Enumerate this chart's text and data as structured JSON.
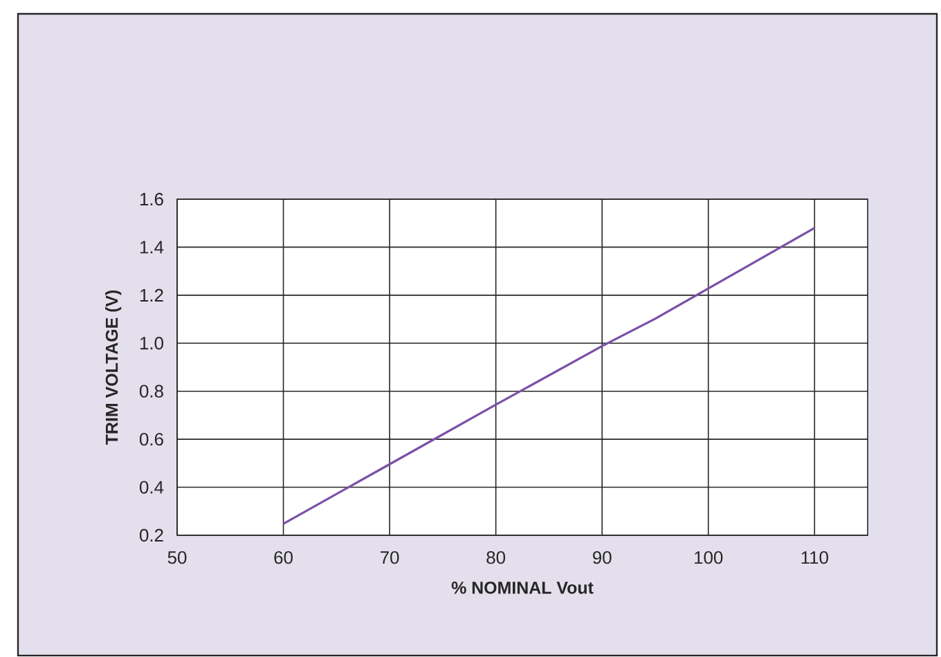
{
  "chart_data": {
    "type": "line",
    "xlabel": "% NOMINAL Vout",
    "ylabel": "TRIM VOLTAGE (V)",
    "x": [
      60,
      70,
      80,
      90,
      95,
      100,
      110
    ],
    "series": [
      {
        "color": "#7b4fa8",
        "values": [
          0.248,
          0.496,
          0.744,
          0.988,
          1.102,
          1.228,
          1.48
        ]
      }
    ],
    "xlim": [
      50,
      115
    ],
    "xticks": [
      50,
      60,
      70,
      80,
      90,
      100,
      110
    ],
    "ylim": [
      0.2,
      1.6
    ],
    "yticks": [
      {
        "value": 0.2,
        "label": "0.2"
      },
      {
        "value": 0.4,
        "label": "0.4"
      },
      {
        "value": 0.6,
        "label": "0.6"
      },
      {
        "value": 0.8,
        "label": "0.8"
      },
      {
        "value": 1.0,
        "label": "1.0"
      },
      {
        "value": 1.2,
        "label": "1.2"
      },
      {
        "value": 1.4,
        "label": "1.4"
      },
      {
        "value": 1.6,
        "label": "1.6"
      }
    ],
    "grid": true,
    "marker": "none",
    "line_style": "solid"
  }
}
